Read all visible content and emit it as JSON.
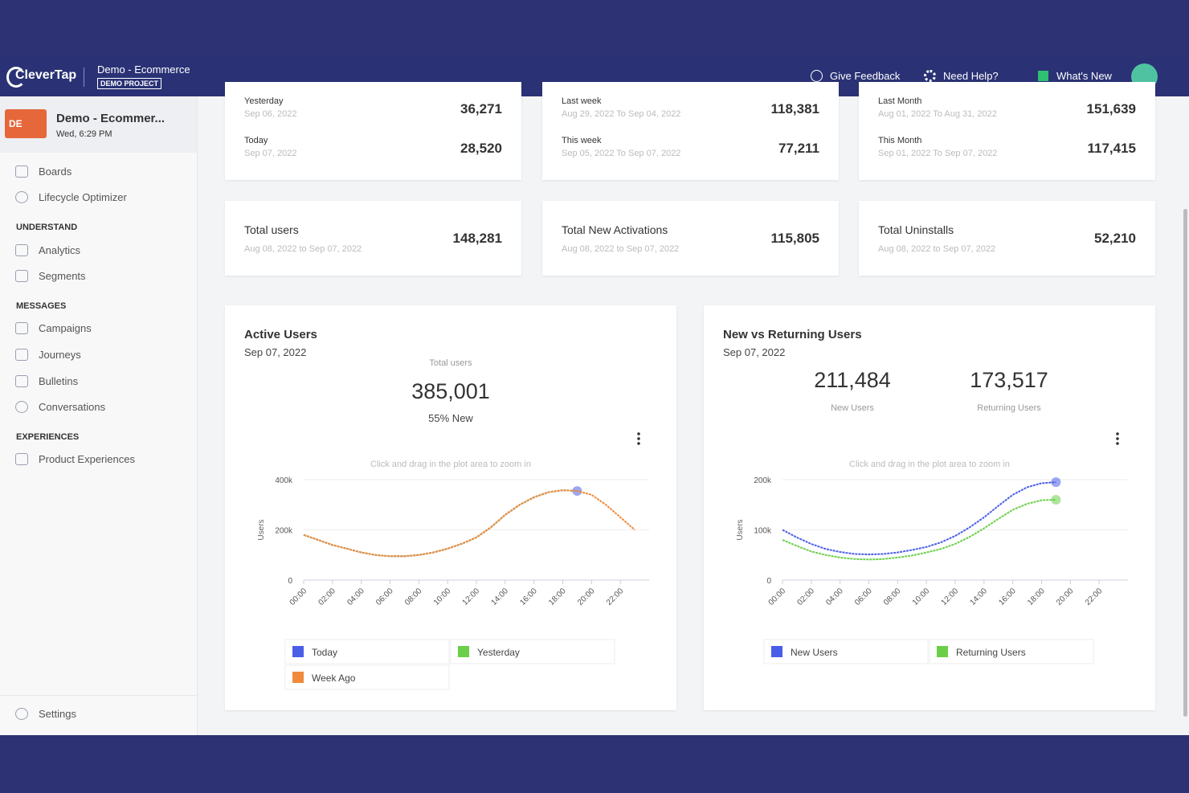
{
  "header": {
    "logo": "CleverTap",
    "project": "Demo - Ecommerce",
    "badge": "DEMO PROJECT",
    "actions": [
      "Give Feedback",
      "Need Help?",
      "What's New"
    ]
  },
  "sidebar": {
    "account": {
      "initials": "DE",
      "name": "Demo - Ecommer...",
      "time": "Wed, 6:29 PM"
    },
    "items": [
      "Boards",
      "Lifecycle Optimizer"
    ],
    "sections": [
      {
        "title": "UNDERSTAND",
        "items": [
          "Analytics",
          "Segments"
        ]
      },
      {
        "title": "MESSAGES",
        "items": [
          "Campaigns",
          "Journeys",
          "Bulletins",
          "Conversations"
        ]
      },
      {
        "title": "EXPERIENCES",
        "items": [
          "Product Experiences"
        ]
      }
    ],
    "settings": "Settings"
  },
  "period_cards": [
    {
      "rows": [
        {
          "label": "Yesterday",
          "range": "Sep 06, 2022",
          "value": "36,271"
        },
        {
          "label": "Today",
          "range": "Sep 07, 2022",
          "value": "28,520"
        }
      ]
    },
    {
      "rows": [
        {
          "label": "Last week",
          "range": "Aug 29, 2022 To Sep 04, 2022",
          "value": "118,381"
        },
        {
          "label": "This week",
          "range": "Sep 05, 2022 To Sep 07, 2022",
          "value": "77,211"
        }
      ]
    },
    {
      "rows": [
        {
          "label": "Last Month",
          "range": "Aug 01, 2022 To Aug 31, 2022",
          "value": "151,639"
        },
        {
          "label": "This Month",
          "range": "Sep 01, 2022 To Sep 07, 2022",
          "value": "117,415"
        }
      ]
    }
  ],
  "total_cards": [
    {
      "title": "Total users",
      "range": "Aug 08, 2022 to Sep 07, 2022",
      "value": "148,281"
    },
    {
      "title": "Total New Activations",
      "range": "Aug 08, 2022 to Sep 07, 2022",
      "value": "115,805"
    },
    {
      "title": "Total Uninstalls",
      "range": "Aug 08, 2022 to Sep 07, 2022",
      "value": "52,210"
    }
  ],
  "charts": [
    {
      "type": "line",
      "title": "Active Users",
      "date": "Sep 07, 2022",
      "stats": [
        {
          "label": "Total users",
          "value": "385,001",
          "note": "55% New"
        }
      ],
      "hint": "Click and drag in the plot area to zoom in",
      "ylabel": "Users",
      "x": [
        0,
        1,
        2,
        3,
        4,
        5,
        6,
        7,
        8,
        9,
        10,
        11,
        12,
        13,
        14,
        15,
        16,
        17,
        18,
        19,
        20,
        21,
        22,
        23
      ],
      "xlim": [
        0,
        24
      ],
      "xticks": [
        {
          "value": 0,
          "label": "00:00"
        },
        {
          "value": 2,
          "label": "02:00"
        },
        {
          "value": 4,
          "label": "04:00"
        },
        {
          "value": 6,
          "label": "06:00"
        },
        {
          "value": 8,
          "label": "08:00"
        },
        {
          "value": 10,
          "label": "10:00"
        },
        {
          "value": 12,
          "label": "12:00"
        },
        {
          "value": 14,
          "label": "14:00"
        },
        {
          "value": 16,
          "label": "16:00"
        },
        {
          "value": 18,
          "label": "18:00"
        },
        {
          "value": 20,
          "label": "20:00"
        },
        {
          "value": 22,
          "label": "22:00"
        }
      ],
      "ylim": [
        0,
        400000
      ],
      "yticks": [
        0,
        {
          "value": 200000,
          "label": "200k"
        },
        {
          "value": 400000,
          "label": "400k"
        }
      ],
      "series": [
        {
          "name": "Today",
          "color": "#4a5ee8",
          "values": [
            180000,
            160000,
            140000,
            125000,
            110000,
            100000,
            95000,
            95000,
            100000,
            110000,
            125000,
            145000,
            170000,
            210000,
            260000,
            300000,
            330000,
            350000,
            358000,
            355000,
            null,
            null,
            null,
            null
          ]
        },
        {
          "name": "Yesterday",
          "color": "#6ccf4a",
          "values": [
            180000,
            160000,
            140000,
            125000,
            110000,
            100000,
            95000,
            95000,
            100000,
            110000,
            125000,
            145000,
            170000,
            210000,
            260000,
            300000,
            330000,
            350000,
            358000,
            355000,
            null,
            null,
            null,
            null
          ]
        },
        {
          "name": "Week Ago",
          "color": "#f08a3c",
          "values": [
            180000,
            160000,
            140000,
            125000,
            110000,
            100000,
            95000,
            95000,
            100000,
            110000,
            125000,
            145000,
            170000,
            210000,
            260000,
            300000,
            330000,
            350000,
            358000,
            355000,
            340000,
            300000,
            250000,
            200000
          ]
        }
      ]
    },
    {
      "type": "line",
      "title": "New vs Returning Users",
      "date": "Sep 07, 2022",
      "stats": [
        {
          "value": "211,484",
          "label": "New Users"
        },
        {
          "value": "173,517",
          "label": "Returning Users"
        }
      ],
      "hint": "Click and drag in the plot area to zoom in",
      "ylabel": "Users",
      "x": [
        0,
        1,
        2,
        3,
        4,
        5,
        6,
        7,
        8,
        9,
        10,
        11,
        12,
        13,
        14,
        15,
        16,
        17,
        18,
        19
      ],
      "xlim": [
        0,
        24
      ],
      "xticks": [
        {
          "value": 0,
          "label": "00:00"
        },
        {
          "value": 2,
          "label": "02:00"
        },
        {
          "value": 4,
          "label": "04:00"
        },
        {
          "value": 6,
          "label": "06:00"
        },
        {
          "value": 8,
          "label": "08:00"
        },
        {
          "value": 10,
          "label": "10:00"
        },
        {
          "value": 12,
          "label": "12:00"
        },
        {
          "value": 14,
          "label": "14:00"
        },
        {
          "value": 16,
          "label": "16:00"
        },
        {
          "value": 18,
          "label": "18:00"
        },
        {
          "value": 20,
          "label": "20:00"
        },
        {
          "value": 22,
          "label": "22:00"
        }
      ],
      "ylim": [
        0,
        200000
      ],
      "yticks": [
        0,
        {
          "value": 100000,
          "label": "100k"
        },
        {
          "value": 200000,
          "label": "200k"
        }
      ],
      "series": [
        {
          "name": "New Users",
          "color": "#4a5ee8",
          "values": [
            100000,
            85000,
            72000,
            62000,
            56000,
            52000,
            51000,
            52000,
            55000,
            60000,
            66000,
            75000,
            88000,
            105000,
            125000,
            148000,
            170000,
            185000,
            193000,
            195000
          ]
        },
        {
          "name": "Returning Users",
          "color": "#6ccf4a",
          "values": [
            80000,
            68000,
            57000,
            50000,
            45000,
            42000,
            41000,
            42000,
            45000,
            49000,
            55000,
            62000,
            72000,
            86000,
            103000,
            122000,
            140000,
            152000,
            159000,
            160000
          ]
        }
      ]
    }
  ]
}
